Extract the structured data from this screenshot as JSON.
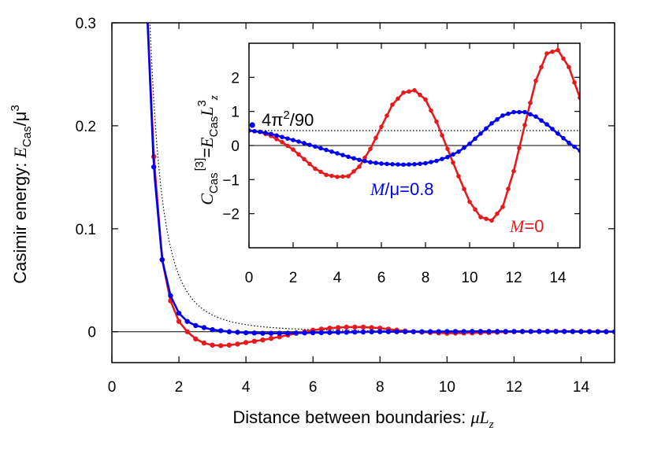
{
  "chart_data": [
    {
      "type": "line",
      "role": "main",
      "xlabel_text": "Distance between boundaries: ",
      "xlabel_var": "μL",
      "xlabel_sub": "z",
      "ylabel_text": "Casimir energy: ",
      "ylabel_var": "E",
      "ylabel_sub": "Cas",
      "ylabel_div": "/μ",
      "ylabel_sup": "3",
      "xlim": [
        0,
        15
      ],
      "ylim": [
        -0.03,
        0.3
      ],
      "xticks": [
        0,
        2,
        4,
        6,
        8,
        10,
        12,
        14
      ],
      "xtick_labels": [
        "0",
        "2",
        "4",
        "6",
        "8",
        "10",
        "12",
        "14"
      ],
      "yticks": [
        0,
        0.1,
        0.2,
        0.3
      ],
      "ytick_labels": [
        "0",
        "0.1",
        "0.2",
        "0.3"
      ],
      "series": [
        {
          "style": "dotted",
          "color": "#000000",
          "formula": "C / x^3 with C = 4π²/90",
          "x": [
            1.0,
            1.2,
            1.5,
            2.0,
            2.5,
            3.0,
            3.5,
            4.0,
            5.0,
            6.0,
            8.0,
            10.0,
            12.0,
            15.0
          ],
          "y": [
            0.4386,
            0.2538,
            0.13,
            0.0548,
            0.0281,
            0.0162,
            0.0102,
            0.0069,
            0.0035,
            0.002,
            0.0009,
            0.0004,
            0.0003,
            0.0001
          ]
        },
        {
          "color": "#e41a1c",
          "x": [
            1.0,
            1.25,
            1.5,
            1.75,
            2.0,
            2.25,
            2.5,
            2.75,
            3.0,
            3.25,
            3.5,
            3.75,
            4.0,
            4.5,
            5.0,
            5.5,
            6.0,
            6.5,
            7.0,
            7.5,
            8.0,
            8.5,
            9.0,
            10.0,
            11.0,
            12.0,
            13.0,
            14.0,
            15.0
          ],
          "y": [
            0.35,
            0.17,
            0.07,
            0.03,
            0.01,
            0.0,
            -0.007,
            -0.011,
            -0.013,
            -0.0135,
            -0.013,
            -0.012,
            -0.0105,
            -0.008,
            -0.005,
            -0.0015,
            0.0015,
            0.0035,
            0.0045,
            0.0045,
            0.0035,
            0.0015,
            0.0,
            -0.0015,
            -0.001,
            0.0,
            0.0005,
            0.0003,
            0.0
          ]
        },
        {
          "color": "#0000ee",
          "x": [
            1.0,
            1.25,
            1.5,
            1.75,
            2.0,
            2.25,
            2.5,
            3.0,
            3.5,
            4.0,
            4.5,
            5.0,
            6.0,
            7.0,
            8.0,
            9.0,
            10.0,
            11.0,
            12.0,
            13.0,
            14.0,
            15.0
          ],
          "y": [
            0.35,
            0.16,
            0.07,
            0.035,
            0.018,
            0.01,
            0.006,
            0.002,
            0.0,
            -0.001,
            -0.0015,
            -0.0015,
            -0.001,
            -0.0005,
            0.0,
            0.0,
            0.0002,
            0.0003,
            0.0003,
            0.0002,
            0.0001,
            0.0
          ]
        }
      ]
    },
    {
      "type": "line",
      "role": "inset",
      "ylabel_var": "C",
      "ylabel_sub": "Cas",
      "ylabel_sup": "[3]",
      "ylabel_rest": "=E",
      "ylabel_sub2": "Cas",
      "ylabel_var2": "L",
      "ylabel_sup2": "3",
      "ylabel_sub3": "z",
      "xlim": [
        0,
        15
      ],
      "ylim": [
        -3,
        3
      ],
      "xticks": [
        0,
        2,
        4,
        6,
        8,
        10,
        12,
        14
      ],
      "xtick_labels": [
        "0",
        "2",
        "4",
        "6",
        "8",
        "10",
        "12",
        "14"
      ],
      "yticks": [
        -2,
        -1,
        0,
        1,
        2
      ],
      "ytick_labels": [
        "−2",
        "−1",
        "0",
        "1",
        "2"
      ],
      "reference": {
        "y": 0.4386,
        "label": "4π²/90",
        "label_sup": "2"
      },
      "annotations": [
        {
          "text_var": "M",
          "text_rest": "/μ=0.8",
          "color": "#0000ee"
        },
        {
          "text_var": "M",
          "text_rest": "=0",
          "color": "#e41a1c"
        }
      ],
      "series": [
        {
          "name": "M=0",
          "color": "#e41a1c",
          "x": [
            0,
            0.5,
            1.0,
            1.5,
            2.0,
            2.5,
            3.0,
            3.5,
            4.0,
            4.5,
            5.0,
            5.5,
            6.0,
            6.5,
            7.0,
            7.5,
            8.0,
            8.5,
            9.0,
            9.5,
            10.0,
            10.5,
            11.0,
            11.5,
            12.0,
            12.5,
            13.0,
            13.5,
            14.0,
            14.5,
            15.0
          ],
          "y": [
            0.44,
            0.4,
            0.28,
            0.1,
            -0.12,
            -0.4,
            -0.68,
            -0.86,
            -0.92,
            -0.9,
            -0.62,
            -0.1,
            0.55,
            1.2,
            1.55,
            1.62,
            1.35,
            0.7,
            -0.1,
            -0.9,
            -1.65,
            -2.1,
            -2.2,
            -1.8,
            -0.75,
            0.6,
            1.9,
            2.7,
            2.8,
            2.3,
            1.4
          ]
        },
        {
          "name": "M/μ=0.8",
          "color": "#0000ee",
          "x": [
            0,
            0.5,
            1.0,
            1.5,
            2.0,
            2.5,
            3.0,
            3.5,
            4.0,
            4.5,
            5.0,
            5.5,
            6.0,
            6.5,
            7.0,
            7.5,
            8.0,
            8.5,
            9.0,
            9.5,
            10.0,
            10.5,
            11.0,
            11.5,
            12.0,
            12.5,
            13.0,
            13.5,
            14.0,
            14.5,
            15.0
          ],
          "y": [
            0.44,
            0.4,
            0.34,
            0.25,
            0.16,
            0.07,
            -0.03,
            -0.13,
            -0.23,
            -0.33,
            -0.42,
            -0.49,
            -0.53,
            -0.55,
            -0.56,
            -0.55,
            -0.52,
            -0.45,
            -0.34,
            -0.18,
            0.05,
            0.35,
            0.65,
            0.88,
            0.98,
            0.98,
            0.85,
            0.62,
            0.35,
            0.08,
            -0.15
          ]
        }
      ]
    }
  ]
}
